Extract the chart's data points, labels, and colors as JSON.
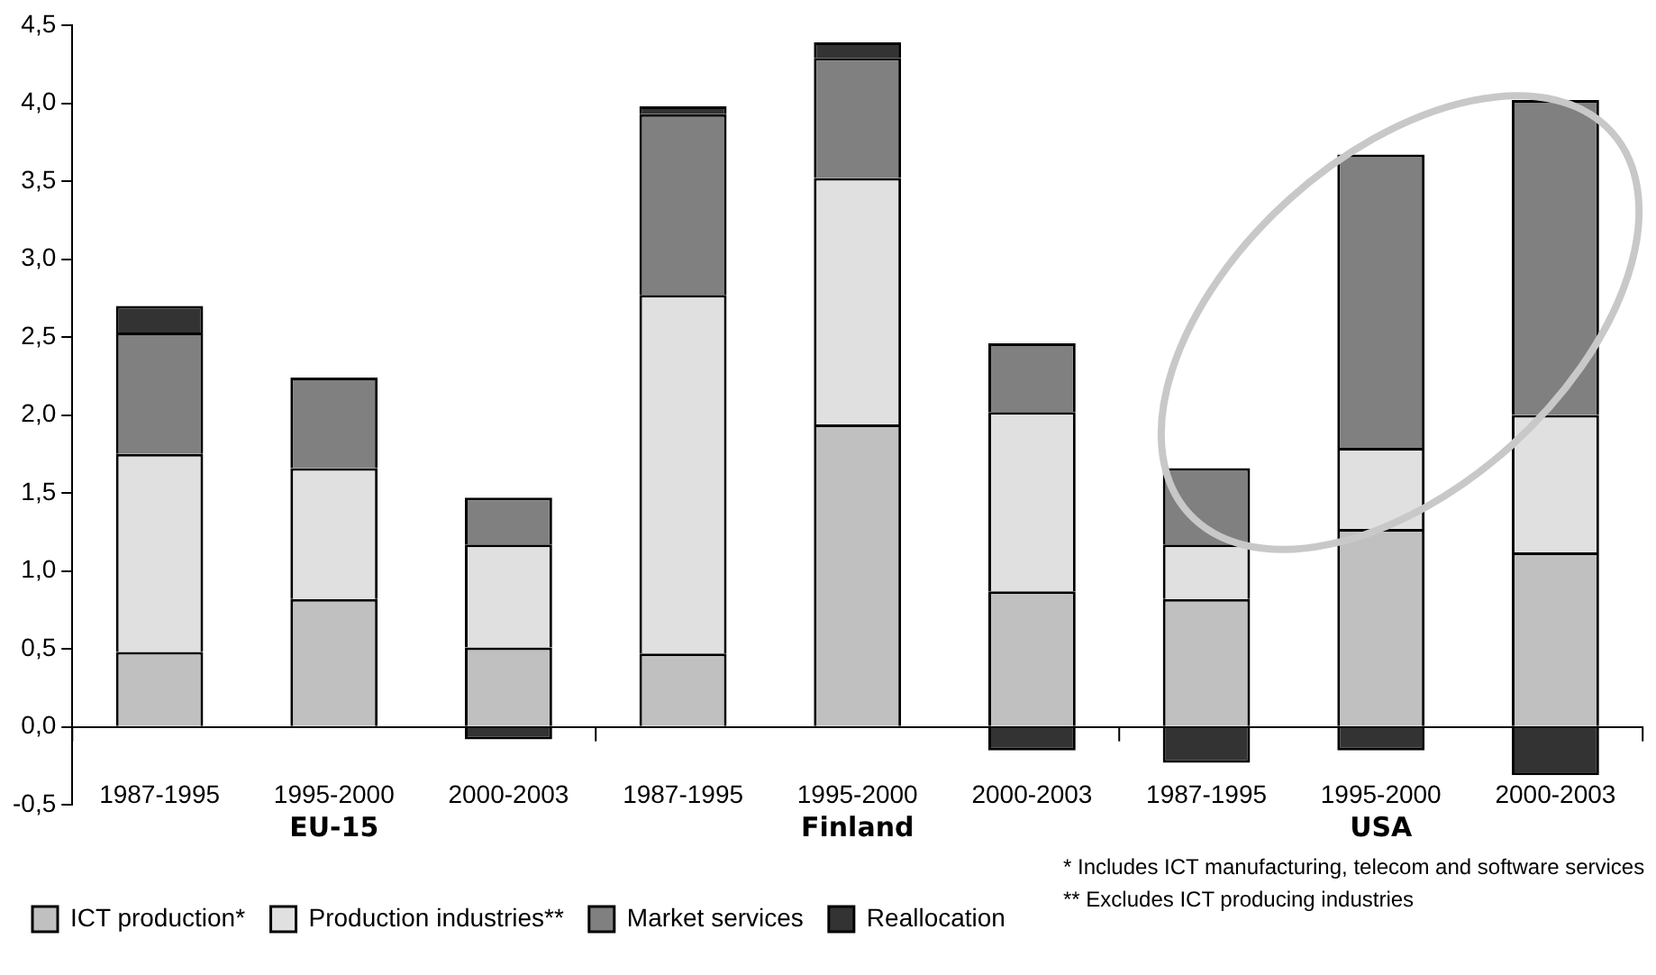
{
  "chart_data": {
    "type": "bar",
    "stacked": true,
    "legend": "bottom",
    "grid": false,
    "categories": [
      "1987-1995",
      "1995-2000",
      "2000-2003",
      "1987-1995",
      "1995-2000",
      "2000-2003",
      "1987-1995",
      "1995-2000",
      "2000-2003"
    ],
    "series": [
      {
        "name": "ICT production*",
        "color": "#c0c0c0",
        "values": [
          0.48,
          0.82,
          0.51,
          0.47,
          1.94,
          0.87,
          0.82,
          1.27,
          1.12
        ]
      },
      {
        "name": "Production industries**",
        "color": "#e0e0e0",
        "values": [
          1.27,
          0.84,
          0.66,
          2.3,
          1.58,
          1.15,
          0.35,
          0.52,
          0.88
        ]
      },
      {
        "name": "Market services",
        "color": "#808080",
        "values": [
          0.78,
          0.58,
          0.3,
          1.16,
          0.77,
          0.44,
          0.49,
          1.88,
          2.02
        ]
      },
      {
        "name": "Reallocation",
        "color": "#333333",
        "values": [
          0.17,
          0,
          -0.08,
          0.05,
          0.1,
          -0.15,
          -0.23,
          -0.15,
          -0.31
        ]
      }
    ],
    "ylim": [
      -0.5,
      4.5
    ],
    "yticks": [
      {
        "value": -0.5,
        "label": "-0,5"
      },
      {
        "value": 0,
        "label": "0,0"
      },
      {
        "value": 0.5,
        "label": "0,5"
      },
      {
        "value": 1,
        "label": "1,0"
      },
      {
        "value": 1.5,
        "label": "1,5"
      },
      {
        "value": 2,
        "label": "2,0"
      },
      {
        "value": 2.5,
        "label": "2,5"
      },
      {
        "value": 3,
        "label": "3,0"
      },
      {
        "value": 3.5,
        "label": "3,5"
      },
      {
        "value": 4,
        "label": "4,0"
      },
      {
        "value": 4.5,
        "label": "4,5"
      }
    ],
    "annotations": [
      "EU-15",
      "Finland",
      "USA",
      "* Includes ICT manufacturing, telecom and software services",
      "** Excludes ICT producing industries"
    ]
  }
}
